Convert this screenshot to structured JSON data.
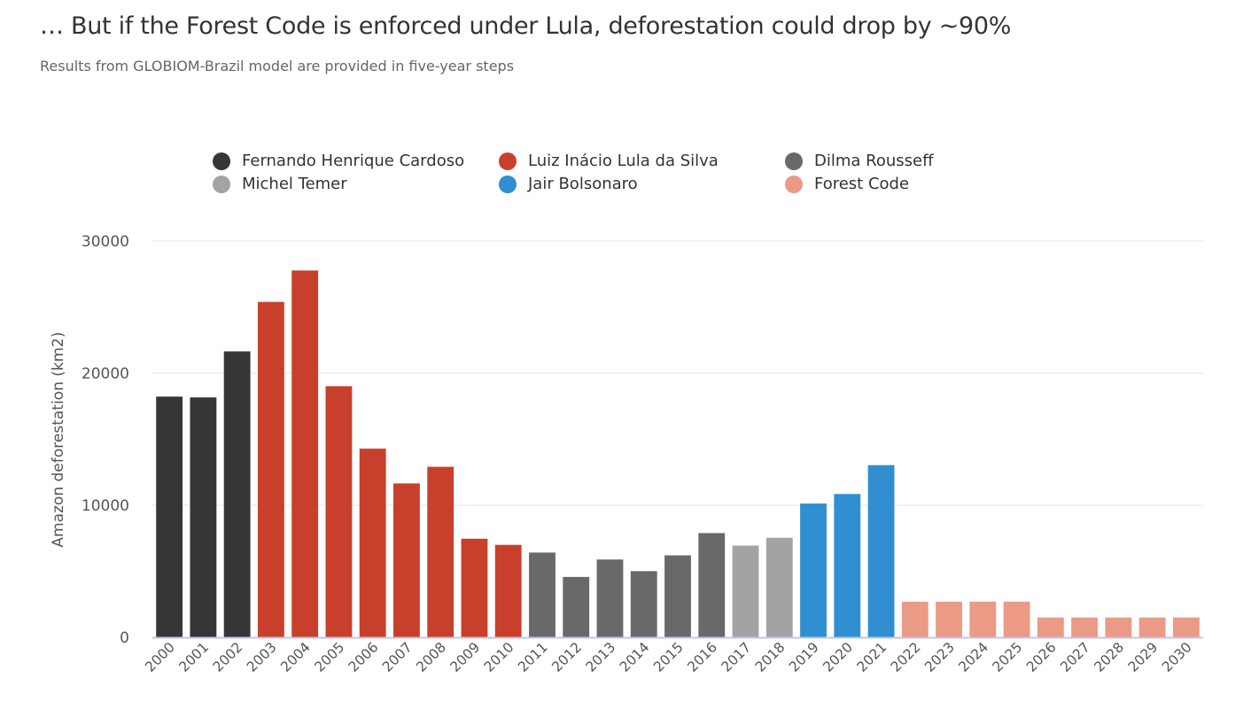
{
  "title": "… But if the Forest Code is enforced under Lula, deforestation could drop by ~90%",
  "subtitle": "Results from GLOBIOM-Brazil model are provided in five-year steps",
  "chart_data": {
    "type": "bar",
    "title": "… But if the Forest Code is enforced under Lula, deforestation could drop by ~90%",
    "subtitle": "Results from GLOBIOM-Brazil model are provided in five-year steps",
    "xlabel": "",
    "ylabel": "Amazon deforestation (km2)",
    "ylim": [
      0,
      30000
    ],
    "yticks": [
      0,
      10000,
      20000,
      30000
    ],
    "grid": true,
    "legend_position": "top",
    "categories": [
      "2000",
      "2001",
      "2002",
      "2003",
      "2004",
      "2005",
      "2006",
      "2007",
      "2008",
      "2009",
      "2010",
      "2011",
      "2012",
      "2013",
      "2014",
      "2015",
      "2016",
      "2017",
      "2018",
      "2019",
      "2020",
      "2021",
      "2022",
      "2023",
      "2024",
      "2025",
      "2026",
      "2027",
      "2028",
      "2029",
      "2030"
    ],
    "values": [
      18226,
      18165,
      21650,
      25396,
      27772,
      19014,
      14286,
      11651,
      12911,
      7464,
      7000,
      6418,
      4571,
      5891,
      5012,
      6207,
      7893,
      6947,
      7536,
      10129,
      10851,
      13038,
      2700,
      2700,
      2700,
      2700,
      1500,
      1500,
      1500,
      1500,
      1500
    ],
    "series_group": [
      "fhc",
      "fhc",
      "fhc",
      "lula",
      "lula",
      "lula",
      "lula",
      "lula",
      "lula",
      "lula",
      "lula",
      "dilma",
      "dilma",
      "dilma",
      "dilma",
      "dilma",
      "dilma",
      "temer",
      "temer",
      "bolsonaro",
      "bolsonaro",
      "bolsonaro",
      "forest",
      "forest",
      "forest",
      "forest",
      "forest",
      "forest",
      "forest",
      "forest",
      "forest"
    ],
    "legend": [
      {
        "key": "fhc",
        "name": "Fernando Henrique Cardoso",
        "color": "#363636"
      },
      {
        "key": "lula",
        "name": "Luiz Inácio Lula da Silva",
        "color": "#c8402b"
      },
      {
        "key": "dilma",
        "name": "Dilma Rousseff",
        "color": "#696969"
      },
      {
        "key": "temer",
        "name": "Michel Temer",
        "color": "#a3a3a3"
      },
      {
        "key": "bolsonaro",
        "name": "Jair Bolsonaro",
        "color": "#2f8fd0"
      },
      {
        "key": "forest",
        "name": "Forest Code",
        "color": "#eb9a86"
      }
    ]
  }
}
